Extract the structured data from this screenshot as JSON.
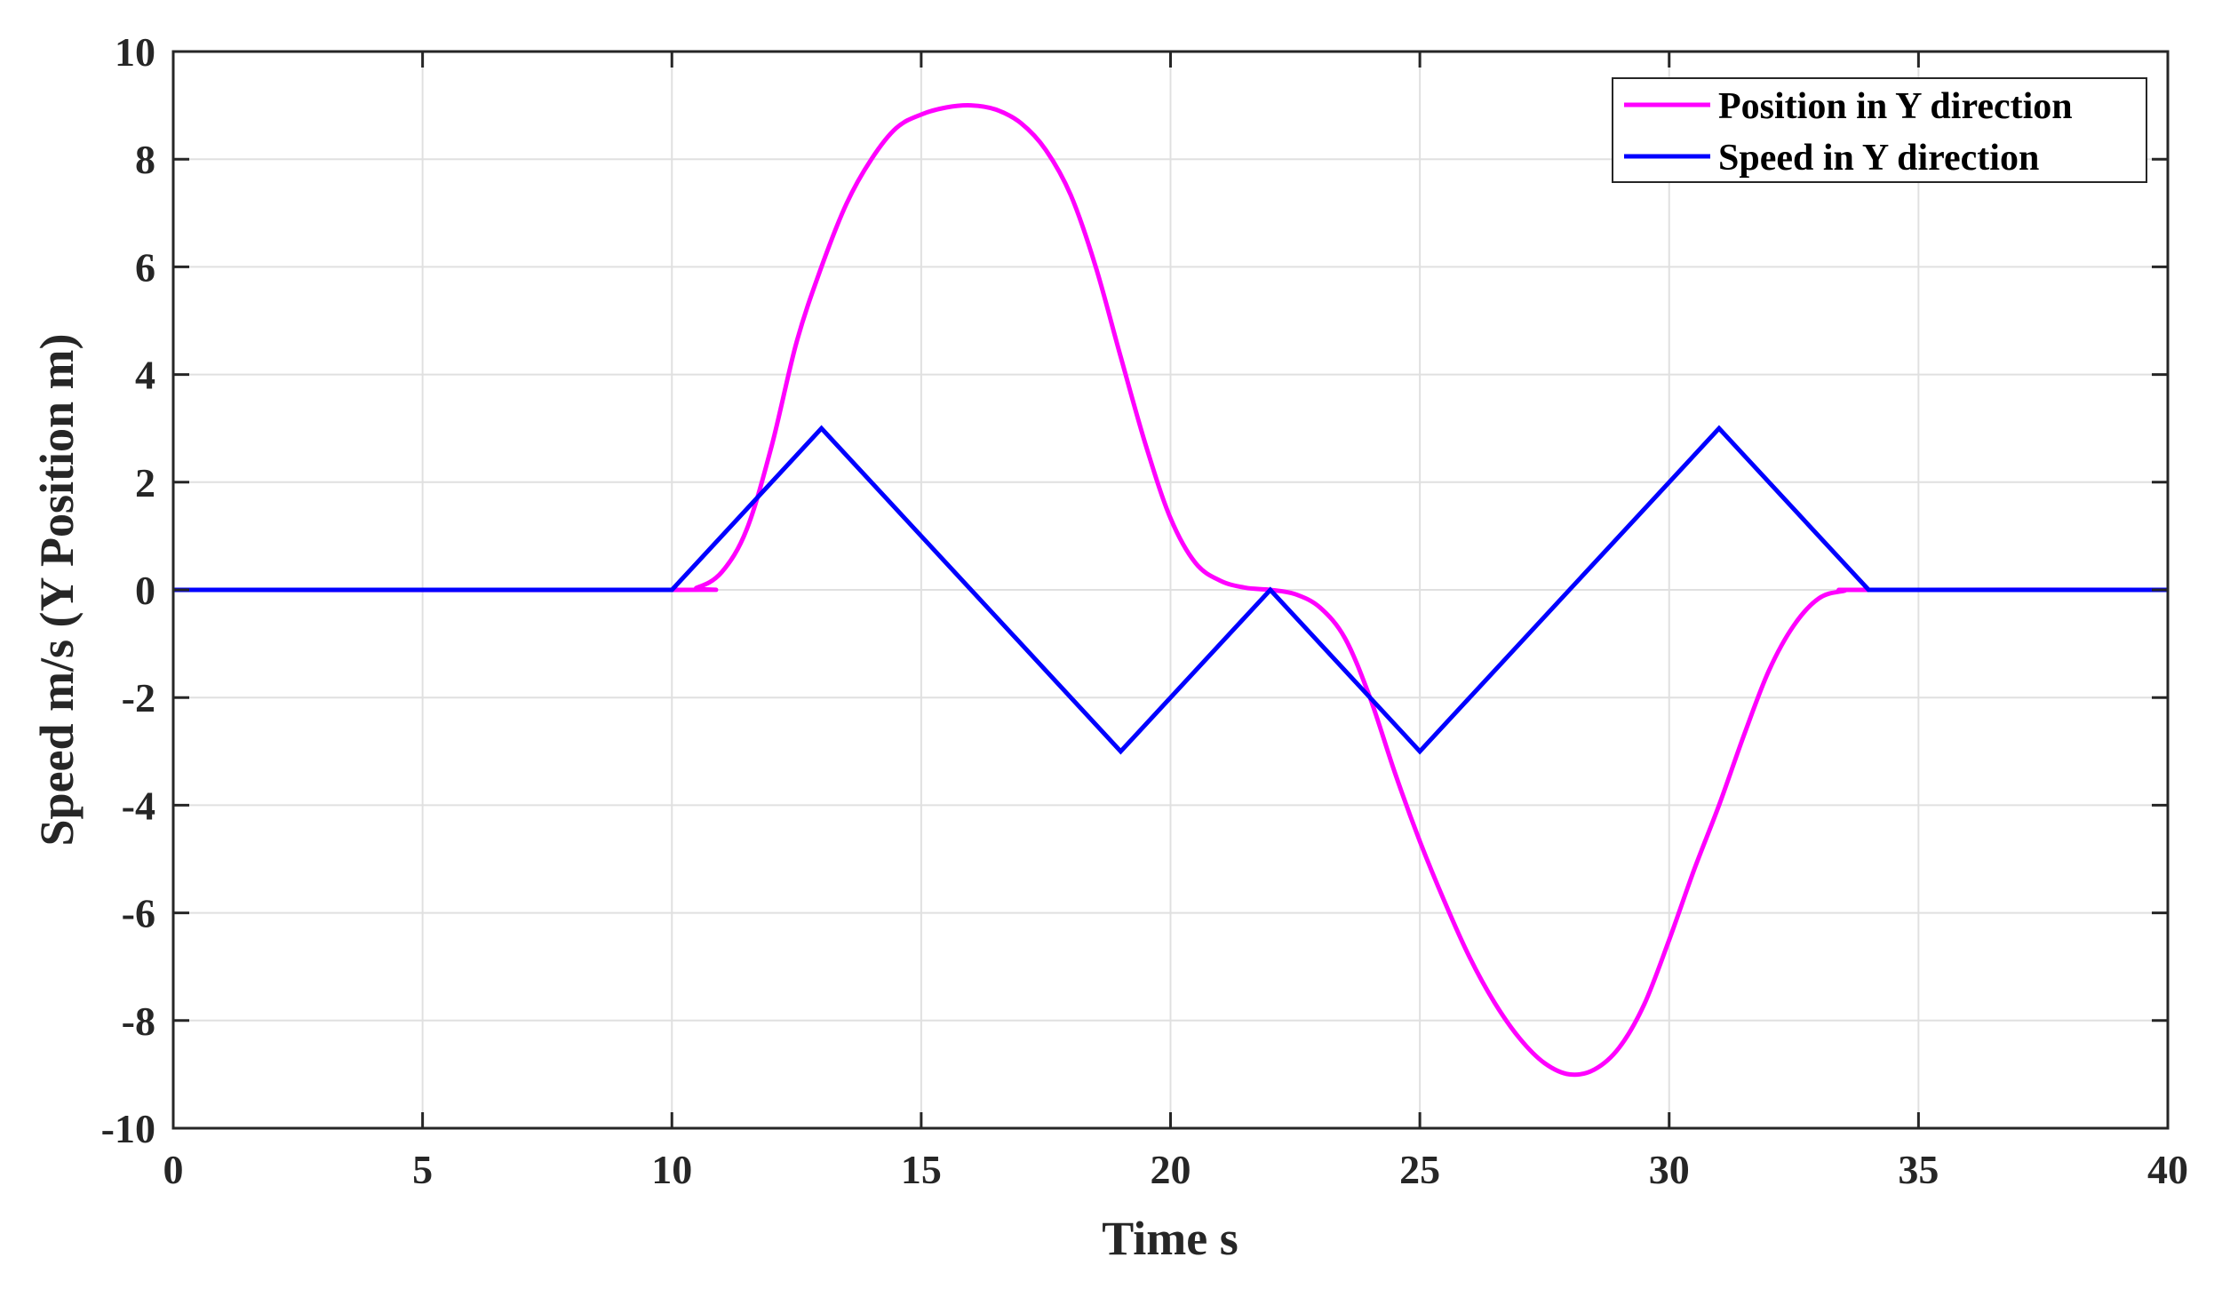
{
  "chart_data": {
    "type": "line",
    "title": "",
    "xlabel": "Time s",
    "ylabel": "Speed m/s (Y Position m)",
    "xlim": [
      0,
      40
    ],
    "ylim": [
      -10,
      10
    ],
    "xticks": [
      0,
      5,
      10,
      15,
      20,
      25,
      30,
      35,
      40
    ],
    "yticks": [
      -10,
      -8,
      -6,
      -4,
      -2,
      0,
      2,
      4,
      6,
      8,
      10
    ],
    "xtick_labels": [
      "0",
      "5",
      "10",
      "15",
      "20",
      "25",
      "30",
      "35",
      "40"
    ],
    "ytick_labels": [
      "-10",
      "-8",
      "-6",
      "-4",
      "-2",
      "0",
      "2",
      "4",
      "6",
      "8",
      "10"
    ],
    "grid": true,
    "legend_position": "top-right",
    "series": [
      {
        "name": "Position in Y direction",
        "color": "#ff00ff",
        "x": [
          0,
          10,
          10.5,
          11,
          11.5,
          12,
          12.5,
          13,
          13.5,
          14,
          14.5,
          15,
          15.5,
          16,
          16.5,
          17,
          17.5,
          18,
          18.5,
          19,
          19.5,
          20,
          20.5,
          21,
          21.5,
          22,
          22.5,
          23,
          23.5,
          24,
          24.5,
          25,
          25.5,
          26,
          26.5,
          27,
          27.5,
          28,
          28.5,
          29,
          29.5,
          30,
          30.5,
          31,
          31.5,
          32,
          32.5,
          33,
          33.5,
          34,
          40
        ],
        "y": [
          0,
          0,
          0.04,
          0.33,
          1.12,
          2.67,
          4.6,
          6.0,
          7.17,
          8.0,
          8.58,
          8.83,
          8.96,
          9.0,
          8.92,
          8.67,
          8.17,
          7.33,
          6.0,
          4.33,
          2.7,
          1.33,
          0.5,
          0.17,
          0.04,
          0,
          -0.08,
          -0.33,
          -0.9,
          -2.0,
          -3.4,
          -4.67,
          -5.8,
          -6.83,
          -7.67,
          -8.33,
          -8.79,
          -9.0,
          -8.91,
          -8.5,
          -7.7,
          -6.5,
          -5.2,
          -4.0,
          -2.7,
          -1.5,
          -0.66,
          -0.16,
          -0.02,
          0,
          0
        ]
      },
      {
        "name": "Speed in Y direction",
        "color": "#0000ff",
        "x": [
          0,
          10,
          13,
          19,
          22,
          25,
          31,
          34,
          40
        ],
        "y": [
          0,
          0,
          3,
          -3,
          0,
          -3,
          3,
          0,
          0
        ]
      }
    ]
  }
}
